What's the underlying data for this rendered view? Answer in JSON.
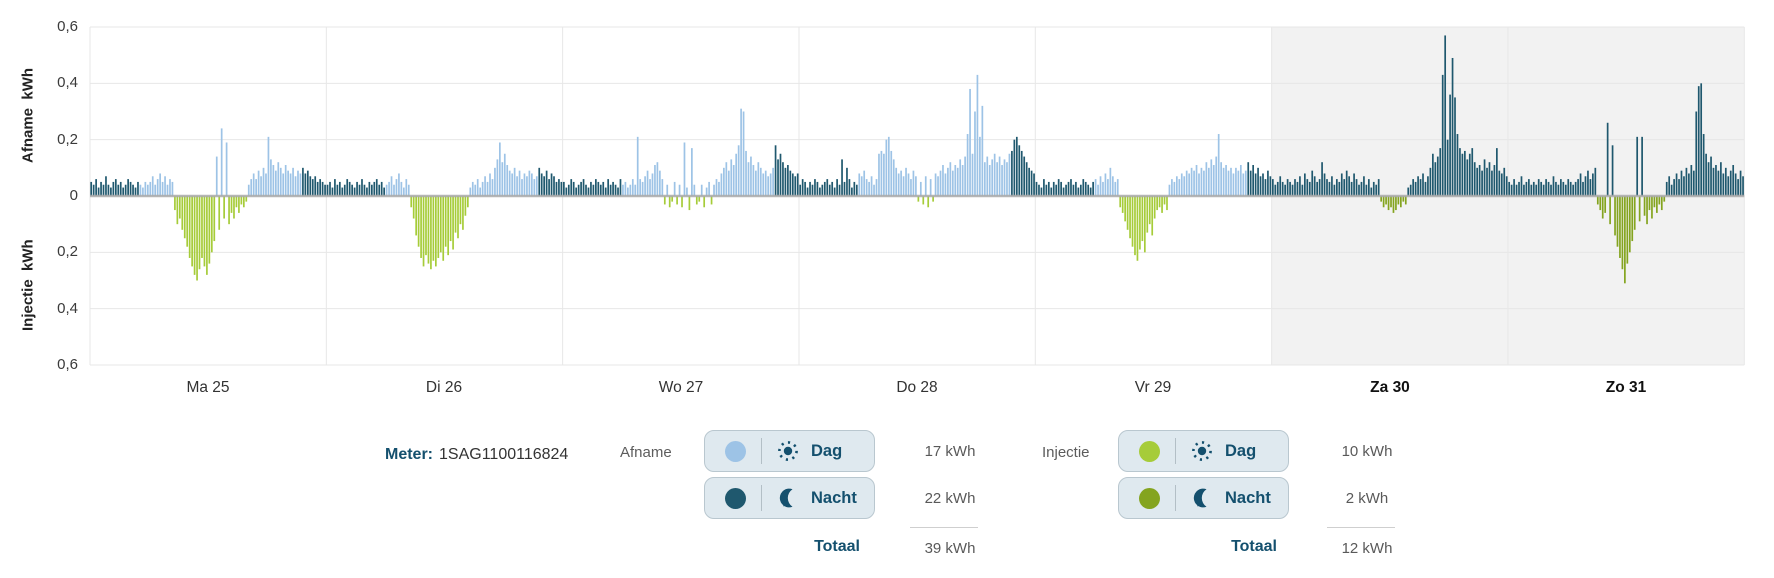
{
  "meter": {
    "label": "Meter:",
    "value": "1SAG1100116824"
  },
  "axes": {
    "afname_title": "Afname  kWh",
    "injectie_title": "Injectie  kWh",
    "tick_labels": [
      "0,6",
      "0,4",
      "0,2",
      "0",
      "0,2",
      "0,4",
      "0,6"
    ]
  },
  "legend": {
    "afname": {
      "label": "Afname",
      "rows": [
        {
          "label": "Dag",
          "icon": "sun-icon",
          "color": "#9DC3E6",
          "value": "17 kWh"
        },
        {
          "label": "Nacht",
          "icon": "moon-icon",
          "color": "#1F586E",
          "value": "22 kWh"
        }
      ],
      "total_label": "Totaal",
      "total_value": "39 kWh"
    },
    "injectie": {
      "label": "Injectie",
      "rows": [
        {
          "label": "Dag",
          "icon": "sun-icon",
          "color": "#A6CC39",
          "value": "10 kWh"
        },
        {
          "label": "Nacht",
          "icon": "moon-icon",
          "color": "#84A41F",
          "value": "2 kWh"
        }
      ],
      "total_label": "Totaal",
      "total_value": "12 kWh"
    }
  },
  "colors": {
    "afname_dag": "#9DC3E6",
    "afname_nacht": "#1F586E",
    "injectie_dag": "#A6CC39",
    "injectie_nacht": "#84A41F",
    "weekend_bg": "#F2F2F2",
    "grid": "#E7E7E7",
    "zero_line": "#ABABAB",
    "accent_text": "#14506E"
  },
  "chart_data": {
    "type": "bar",
    "title": "",
    "xlabel": "",
    "ylabel_top": "Afname kWh",
    "ylabel_bottom": "Injectie kWh",
    "unit": "kWh",
    "value_scale": 0.01,
    "ylim": [
      -0.6,
      0.6
    ],
    "bars_per_day": 96,
    "legend_position": "bottom",
    "grid": true,
    "days": [
      {
        "label": "Ma 25",
        "weekend": false,
        "night_ranges": [
          [
            0,
            19
          ],
          [
            86,
            95
          ]
        ],
        "values": [
          5,
          4,
          6,
          3,
          5,
          4,
          7,
          4,
          3,
          5,
          6,
          4,
          5,
          3,
          4,
          6,
          5,
          4,
          3,
          5,
          4,
          3,
          5,
          4,
          5,
          7,
          4,
          6,
          8,
          5,
          7,
          4,
          6,
          5,
          -5,
          -10,
          -8,
          -12,
          -15,
          -18,
          -22,
          -25,
          -28,
          -30,
          -26,
          -22,
          -25,
          -28,
          -24,
          -20,
          -16,
          14,
          -12,
          24,
          -8,
          19,
          -10,
          -6,
          -8,
          -4,
          -6,
          -3,
          -4,
          -2,
          4,
          6,
          8,
          6,
          9,
          7,
          10,
          8,
          21,
          13,
          11,
          9,
          12,
          10,
          8,
          11,
          9,
          8,
          10,
          7,
          9,
          8,
          10,
          8,
          9,
          7,
          6,
          7,
          5,
          6,
          5,
          4
        ]
      },
      {
        "label": "Di 26",
        "weekend": false,
        "night_ranges": [
          [
            0,
            23
          ],
          [
            86,
            95
          ]
        ],
        "values": [
          4,
          5,
          3,
          6,
          4,
          5,
          3,
          4,
          6,
          5,
          4,
          3,
          5,
          4,
          6,
          4,
          3,
          5,
          4,
          5,
          6,
          4,
          5,
          3,
          4,
          5,
          7,
          4,
          6,
          8,
          5,
          3,
          6,
          4,
          -4,
          -8,
          -14,
          -18,
          -22,
          -25,
          -21,
          -24,
          -26,
          -23,
          -25,
          -22,
          -20,
          -23,
          -18,
          -21,
          -16,
          -19,
          -13,
          -15,
          -10,
          -12,
          -7,
          -4,
          3,
          5,
          4,
          6,
          3,
          5,
          7,
          5,
          8,
          6,
          10,
          13,
          19,
          12,
          15,
          11,
          9,
          8,
          10,
          7,
          9,
          6,
          8,
          7,
          9,
          8,
          6,
          7,
          10,
          8,
          7,
          9,
          6,
          8,
          7,
          5,
          6,
          5
        ]
      },
      {
        "label": "Wo 27",
        "weekend": false,
        "night_ranges": [
          [
            0,
            23
          ],
          [
            86,
            95
          ]
        ],
        "values": [
          5,
          3,
          4,
          6,
          5,
          3,
          4,
          5,
          6,
          4,
          3,
          5,
          4,
          6,
          5,
          4,
          5,
          3,
          6,
          4,
          5,
          4,
          3,
          6,
          4,
          5,
          3,
          4,
          6,
          4,
          21,
          6,
          5,
          7,
          9,
          6,
          8,
          11,
          12,
          9,
          6,
          -3,
          4,
          -4,
          -2,
          5,
          -3,
          4,
          -4,
          19,
          3,
          -5,
          17,
          4,
          -3,
          -2,
          4,
          -4,
          3,
          5,
          -3,
          4,
          6,
          5,
          8,
          10,
          12,
          9,
          13,
          11,
          15,
          18,
          31,
          30,
          16,
          12,
          14,
          11,
          9,
          12,
          10,
          8,
          9,
          7,
          8,
          10,
          18,
          13,
          15,
          12,
          10,
          11,
          9,
          8,
          7,
          8
        ]
      },
      {
        "label": "Do 28",
        "weekend": false,
        "night_ranges": [
          [
            0,
            23
          ],
          [
            86,
            95
          ]
        ],
        "values": [
          4,
          6,
          5,
          3,
          5,
          4,
          6,
          5,
          3,
          4,
          5,
          6,
          4,
          5,
          3,
          6,
          4,
          13,
          5,
          10,
          6,
          3,
          5,
          4,
          8,
          7,
          9,
          6,
          5,
          7,
          4,
          6,
          15,
          16,
          15,
          20,
          21,
          16,
          13,
          10,
          8,
          9,
          7,
          10,
          8,
          6,
          9,
          7,
          -2,
          5,
          -3,
          7,
          -4,
          6,
          -2,
          8,
          7,
          9,
          11,
          8,
          10,
          12,
          9,
          11,
          10,
          13,
          11,
          14,
          22,
          38,
          15,
          30,
          43,
          21,
          32,
          12,
          14,
          11,
          13,
          15,
          12,
          14,
          11,
          13,
          12,
          15,
          16,
          20,
          21,
          18,
          16,
          14,
          12,
          10,
          9,
          8
        ]
      },
      {
        "label": "Vr 29",
        "weekend": false,
        "night_ranges": [
          [
            0,
            23
          ],
          [
            86,
            95
          ]
        ],
        "values": [
          5,
          4,
          3,
          6,
          4,
          5,
          3,
          5,
          4,
          6,
          5,
          3,
          4,
          5,
          6,
          4,
          5,
          3,
          4,
          6,
          5,
          4,
          3,
          5,
          6,
          4,
          7,
          5,
          8,
          6,
          10,
          7,
          5,
          6,
          -4,
          -6,
          -9,
          -12,
          -15,
          -18,
          -21,
          -23,
          -19,
          -16,
          -20,
          -13,
          -10,
          -14,
          -8,
          -5,
          -4,
          -6,
          -3,
          -5,
          4,
          6,
          5,
          7,
          6,
          8,
          7,
          9,
          8,
          10,
          9,
          11,
          8,
          10,
          9,
          12,
          10,
          13,
          11,
          14,
          22,
          12,
          10,
          11,
          9,
          10,
          8,
          10,
          9,
          11,
          8,
          9,
          12,
          9,
          11,
          8,
          10,
          7,
          8,
          6,
          9,
          7
        ]
      },
      {
        "label": "Za 30",
        "weekend": true,
        "night_ranges": [
          [
            0,
            95
          ]
        ],
        "values": [
          6,
          4,
          5,
          7,
          5,
          4,
          6,
          5,
          4,
          6,
          5,
          7,
          4,
          8,
          6,
          5,
          9,
          7,
          5,
          6,
          12,
          8,
          6,
          5,
          7,
          4,
          6,
          5,
          8,
          6,
          9,
          7,
          5,
          8,
          6,
          4,
          5,
          7,
          4,
          6,
          3,
          5,
          4,
          6,
          -2,
          -4,
          -3,
          -5,
          -4,
          -6,
          -5,
          -3,
          -4,
          -2,
          -3,
          3,
          4,
          6,
          5,
          7,
          6,
          8,
          5,
          7,
          10,
          15,
          12,
          14,
          17,
          43,
          57,
          20,
          36,
          49,
          35,
          22,
          17,
          15,
          16,
          13,
          15,
          17,
          12,
          10,
          11,
          9,
          13,
          10,
          12,
          9,
          11,
          17,
          9,
          8,
          10,
          7
        ]
      },
      {
        "label": "Zo 31",
        "weekend": true,
        "night_ranges": [
          [
            0,
            95
          ]
        ],
        "values": [
          5,
          4,
          6,
          4,
          5,
          7,
          4,
          5,
          6,
          4,
          5,
          4,
          6,
          5,
          4,
          6,
          5,
          4,
          7,
          5,
          4,
          6,
          5,
          4,
          6,
          5,
          4,
          5,
          6,
          8,
          5,
          7,
          9,
          6,
          8,
          10,
          -3,
          -5,
          -8,
          -6,
          26,
          -10,
          18,
          -14,
          -18,
          -22,
          -26,
          -31,
          -24,
          -20,
          -16,
          -12,
          21,
          -9,
          21,
          -7,
          -10,
          -5,
          -8,
          -4,
          -6,
          -3,
          -5,
          -2,
          5,
          7,
          4,
          6,
          8,
          6,
          9,
          7,
          10,
          8,
          11,
          9,
          30,
          39,
          40,
          22,
          15,
          12,
          14,
          10,
          11,
          9,
          12,
          8,
          10,
          7,
          9,
          11,
          8,
          6,
          9,
          7
        ]
      }
    ]
  }
}
